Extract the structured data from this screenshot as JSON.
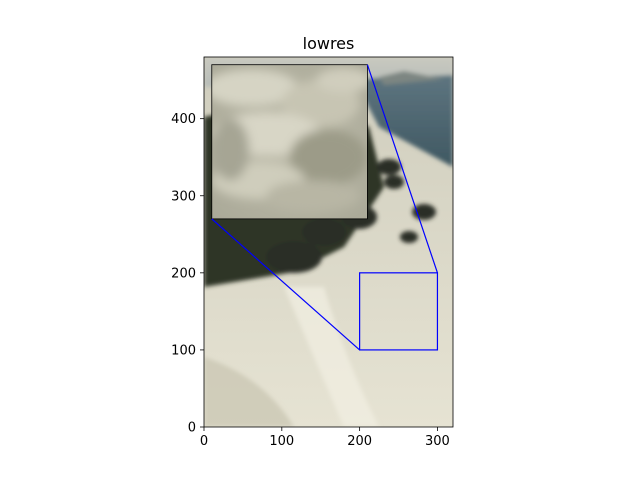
{
  "chart_data": {
    "type": "image",
    "title": "lowres",
    "xlabel": "",
    "ylabel": "",
    "xlim": [
      0,
      320
    ],
    "ylim": [
      0,
      480
    ],
    "x_ticks": [
      0,
      100,
      200,
      300
    ],
    "y_ticks": [
      0,
      100,
      200,
      300,
      400
    ],
    "image_description": "coastal cliffs with rocks, sea and foamy surf, low resolution",
    "zoom_region": {
      "x": [
        200,
        300
      ],
      "y": [
        100,
        200
      ]
    },
    "inset_axes_data": {
      "x": [
        10,
        210
      ],
      "y": [
        270,
        470
      ]
    },
    "indicator_color": "#0000ff"
  }
}
